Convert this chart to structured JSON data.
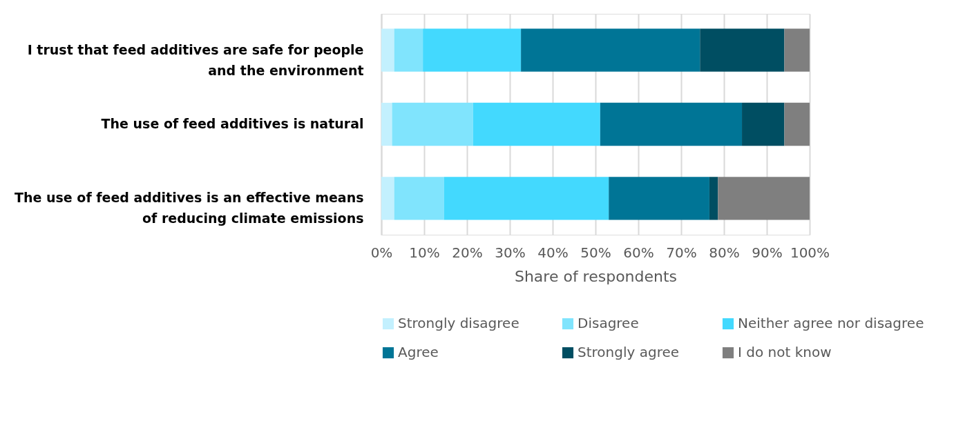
{
  "chart_data": {
    "type": "bar",
    "orientation": "horizontal",
    "stacked": true,
    "xlabel": "Share of respondents",
    "categories": [
      "I trust that feed additives are safe for people and the environment",
      "The use of feed additives is natural",
      "The use of feed additives is an effective means of reducing climate emissions"
    ],
    "series": [
      {
        "name": "Strongly disagree",
        "color": "#c3f0fe",
        "values": [
          3.0,
          2.5,
          3.0
        ]
      },
      {
        "name": "Disagree",
        "color": "#80e4fd",
        "values": [
          6.7,
          18.9,
          11.6
        ]
      },
      {
        "name": "Neither agree nor disagree",
        "color": "#43d9fe",
        "values": [
          22.9,
          29.7,
          38.5
        ]
      },
      {
        "name": "Agree",
        "color": "#007596",
        "values": [
          41.8,
          33.1,
          23.5
        ]
      },
      {
        "name": "Strongly agree",
        "color": "#004e62",
        "values": [
          19.7,
          9.9,
          2.0
        ]
      },
      {
        "name": "I do not know",
        "color": "#7f7f7f",
        "values": [
          5.9,
          5.9,
          21.4
        ]
      }
    ],
    "xlim": [
      0,
      100
    ],
    "xticks": [
      {
        "value": 0,
        "label": "0%"
      },
      {
        "value": 10,
        "label": "10%"
      },
      {
        "value": 20,
        "label": "20%"
      },
      {
        "value": 30,
        "label": "30%"
      },
      {
        "value": 40,
        "label": "40%"
      },
      {
        "value": 50,
        "label": "50%"
      },
      {
        "value": 60,
        "label": "60%"
      },
      {
        "value": 70,
        "label": "70%"
      },
      {
        "value": 80,
        "label": "80%"
      },
      {
        "value": 90,
        "label": "90%"
      },
      {
        "value": 100,
        "label": "100%"
      }
    ],
    "grid": "x",
    "legend": "bottom"
  }
}
